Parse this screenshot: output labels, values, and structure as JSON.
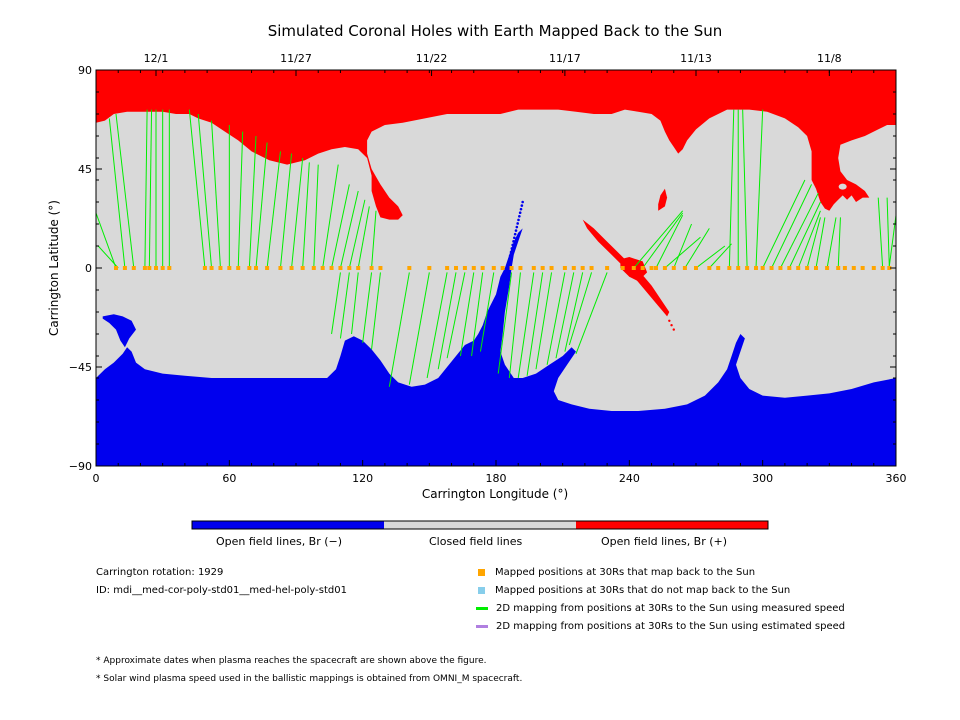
{
  "chart_data": {
    "type": "map",
    "title": "Simulated Coronal Holes with Earth Mapped Back to the Sun",
    "xlabel": "Carrington Longitude (°)",
    "ylabel": "Carrington Latitude (°)",
    "xlim": [
      0,
      360
    ],
    "ylim": [
      -90,
      90
    ],
    "x_ticks": [
      "0",
      "60",
      "120",
      "180",
      "240",
      "300",
      "360"
    ],
    "y_ticks": [
      "90",
      "45",
      "0",
      "−45",
      "−90"
    ],
    "top_axis_dates": [
      {
        "label": "12/1",
        "lon": 27
      },
      {
        "label": "11/27",
        "lon": 90
      },
      {
        "label": "11/22",
        "lon": 151
      },
      {
        "label": "11/17",
        "lon": 211
      },
      {
        "label": "11/13",
        "lon": 270
      },
      {
        "label": "11/8",
        "lon": 330
      }
    ],
    "colors": {
      "open_negative": "#0000ee",
      "closed": "#d9d9d9",
      "open_positive": "#ff0000",
      "mapped_point": "#ffa500",
      "unmapped_point": "#87ceeb",
      "measured_line": "#00ee00",
      "estimated_line": "#b07fe0"
    },
    "mapped_points_lon": [
      9,
      13,
      17,
      22,
      24,
      27,
      30,
      33,
      49,
      52,
      56,
      60,
      64,
      69,
      72,
      77,
      83,
      88,
      93,
      98,
      102,
      106,
      110,
      114,
      118,
      124,
      128,
      141,
      150,
      158,
      162,
      166,
      170,
      174,
      179,
      183,
      187,
      191,
      197,
      201,
      205,
      211,
      215,
      219,
      223,
      230,
      237,
      242,
      246,
      250,
      252,
      256,
      260,
      265,
      270,
      276,
      280,
      285,
      289,
      293,
      297,
      300,
      304,
      308,
      312,
      316,
      320,
      324,
      329,
      334,
      337,
      341,
      345,
      350,
      354,
      357
    ],
    "mapping_lines": [
      {
        "from": [
          9,
          0
        ],
        "to": [
          0,
          25
        ]
      },
      {
        "from": [
          10,
          0
        ],
        "to": [
          1,
          10
        ]
      },
      {
        "from": [
          13,
          0
        ],
        "to": [
          6,
          68
        ]
      },
      {
        "from": [
          17,
          0
        ],
        "to": [
          9,
          70
        ]
      },
      {
        "from": [
          22,
          0
        ],
        "to": [
          23,
          72
        ]
      },
      {
        "from": [
          24,
          0
        ],
        "to": [
          25,
          72
        ]
      },
      {
        "from": [
          27,
          0
        ],
        "to": [
          27,
          72
        ]
      },
      {
        "from": [
          30,
          0
        ],
        "to": [
          30,
          72
        ]
      },
      {
        "from": [
          33,
          0
        ],
        "to": [
          33,
          72
        ]
      },
      {
        "from": [
          49,
          0
        ],
        "to": [
          42,
          72
        ]
      },
      {
        "from": [
          52,
          0
        ],
        "to": [
          46,
          70
        ]
      },
      {
        "from": [
          56,
          0
        ],
        "to": [
          52,
          67
        ]
      },
      {
        "from": [
          60,
          0
        ],
        "to": [
          60,
          65
        ]
      },
      {
        "from": [
          64,
          0
        ],
        "to": [
          66,
          62
        ]
      },
      {
        "from": [
          69,
          0
        ],
        "to": [
          72,
          60
        ]
      },
      {
        "from": [
          72,
          0
        ],
        "to": [
          77,
          57
        ]
      },
      {
        "from": [
          77,
          0
        ],
        "to": [
          83,
          53
        ]
      },
      {
        "from": [
          83,
          0
        ],
        "to": [
          88,
          52
        ]
      },
      {
        "from": [
          88,
          0
        ],
        "to": [
          93,
          50
        ]
      },
      {
        "from": [
          93,
          0
        ],
        "to": [
          96,
          48
        ]
      },
      {
        "from": [
          98,
          0
        ],
        "to": [
          100,
          47
        ]
      },
      {
        "from": [
          102,
          0
        ],
        "to": [
          109,
          47
        ]
      },
      {
        "from": [
          106,
          0
        ],
        "to": [
          114,
          38
        ]
      },
      {
        "from": [
          110,
          0
        ],
        "to": [
          118,
          35
        ]
      },
      {
        "from": [
          114,
          0
        ],
        "to": [
          121,
          31
        ]
      },
      {
        "from": [
          118,
          0
        ],
        "to": [
          123,
          28
        ]
      },
      {
        "from": [
          124,
          0
        ],
        "to": [
          126,
          26
        ]
      },
      {
        "from": [
          110,
          -2
        ],
        "to": [
          106,
          -30
        ]
      },
      {
        "from": [
          114,
          -2
        ],
        "to": [
          110,
          -32
        ]
      },
      {
        "from": [
          118,
          -2
        ],
        "to": [
          115,
          -30
        ]
      },
      {
        "from": [
          124,
          -2
        ],
        "to": [
          120,
          -34
        ]
      },
      {
        "from": [
          128,
          -2
        ],
        "to": [
          124,
          -37
        ]
      },
      {
        "from": [
          141,
          -2
        ],
        "to": [
          132,
          -54
        ]
      },
      {
        "from": [
          150,
          -2
        ],
        "to": [
          141,
          -53
        ]
      },
      {
        "from": [
          158,
          -2
        ],
        "to": [
          149,
          -50
        ]
      },
      {
        "from": [
          162,
          -2
        ],
        "to": [
          154,
          -46
        ]
      },
      {
        "from": [
          166,
          -2
        ],
        "to": [
          158,
          -41
        ]
      },
      {
        "from": [
          170,
          -2
        ],
        "to": [
          164,
          -40
        ]
      },
      {
        "from": [
          174,
          -2
        ],
        "to": [
          169,
          -40
        ]
      },
      {
        "from": [
          179,
          -2
        ],
        "to": [
          173,
          -38
        ]
      },
      {
        "from": [
          187,
          -2
        ],
        "to": [
          181,
          -48
        ]
      },
      {
        "from": [
          191,
          -2
        ],
        "to": [
          186,
          -50
        ]
      },
      {
        "from": [
          197,
          -2
        ],
        "to": [
          190,
          -50
        ]
      },
      {
        "from": [
          201,
          -2
        ],
        "to": [
          194,
          -49
        ]
      },
      {
        "from": [
          205,
          -2
        ],
        "to": [
          198,
          -46
        ]
      },
      {
        "from": [
          211,
          -2
        ],
        "to": [
          203,
          -44
        ]
      },
      {
        "from": [
          215,
          -2
        ],
        "to": [
          207,
          -41
        ]
      },
      {
        "from": [
          219,
          -2
        ],
        "to": [
          211,
          -38
        ]
      },
      {
        "from": [
          223,
          -2
        ],
        "to": [
          213,
          -35
        ]
      },
      {
        "from": [
          230,
          -2
        ],
        "to": [
          216,
          -39
        ]
      },
      {
        "from": [
          242,
          0
        ],
        "to": [
          264,
          26
        ]
      },
      {
        "from": [
          246,
          0
        ],
        "to": [
          264,
          25
        ]
      },
      {
        "from": [
          252,
          0
        ],
        "to": [
          264,
          24
        ]
      },
      {
        "from": [
          256,
          0
        ],
        "to": [
          272,
          14
        ]
      },
      {
        "from": [
          260,
          0
        ],
        "to": [
          268,
          20
        ]
      },
      {
        "from": [
          265,
          0
        ],
        "to": [
          276,
          18
        ]
      },
      {
        "from": [
          270,
          0
        ],
        "to": [
          283,
          10
        ]
      },
      {
        "from": [
          276,
          0
        ],
        "to": [
          286,
          11
        ]
      },
      {
        "from": [
          285,
          0
        ],
        "to": [
          287,
          72
        ]
      },
      {
        "from": [
          289,
          0
        ],
        "to": [
          289,
          72
        ]
      },
      {
        "from": [
          293,
          0
        ],
        "to": [
          291,
          72
        ]
      },
      {
        "from": [
          297,
          0
        ],
        "to": [
          300,
          72
        ]
      },
      {
        "from": [
          300,
          0
        ],
        "to": [
          319,
          40
        ]
      },
      {
        "from": [
          304,
          0
        ],
        "to": [
          322,
          38
        ]
      },
      {
        "from": [
          308,
          0
        ],
        "to": [
          325,
          34
        ]
      },
      {
        "from": [
          312,
          0
        ],
        "to": [
          326,
          30
        ]
      },
      {
        "from": [
          316,
          0
        ],
        "to": [
          326,
          26
        ]
      },
      {
        "from": [
          320,
          0
        ],
        "to": [
          326,
          23
        ]
      },
      {
        "from": [
          324,
          0
        ],
        "to": [
          328,
          23
        ]
      },
      {
        "from": [
          329,
          0
        ],
        "to": [
          333,
          23
        ]
      },
      {
        "from": [
          334,
          0
        ],
        "to": [
          335,
          23
        ]
      },
      {
        "from": [
          354,
          0
        ],
        "to": [
          352,
          32
        ]
      },
      {
        "from": [
          357,
          0
        ],
        "to": [
          356,
          32
        ]
      },
      {
        "from": [
          357,
          1
        ],
        "to": [
          360,
          24
        ]
      }
    ],
    "blue_trail_end_lat": 30,
    "colorbar": {
      "labels": [
        "Open field lines, Br (−)",
        "Closed field lines",
        "Open field lines, Br (+)"
      ]
    }
  },
  "info": {
    "rotation": "Carrington rotation: 1929",
    "id": "ID: mdi__med-cor-poly-std01__med-hel-poly-std01"
  },
  "legend": [
    {
      "label": "Mapped positions at 30Rs that map back to the Sun",
      "kind": "square",
      "color": "#ffa500"
    },
    {
      "label": "Mapped positions at 30Rs that do not map back to the Sun",
      "kind": "square",
      "color": "#87ceeb"
    },
    {
      "label": "2D mapping from positions at 30Rs to the Sun using measured speed",
      "kind": "line",
      "color": "#00ee00"
    },
    {
      "label": "2D mapping from positions at 30Rs to the Sun using estimated speed",
      "kind": "line",
      "color": "#b07fe0"
    }
  ],
  "notes": [
    "* Approximate dates when plasma reaches the spacecraft are shown above the figure.",
    "* Solar wind plasma speed used in the ballistic mappings is obtained from OMNI_M spacecraft."
  ]
}
